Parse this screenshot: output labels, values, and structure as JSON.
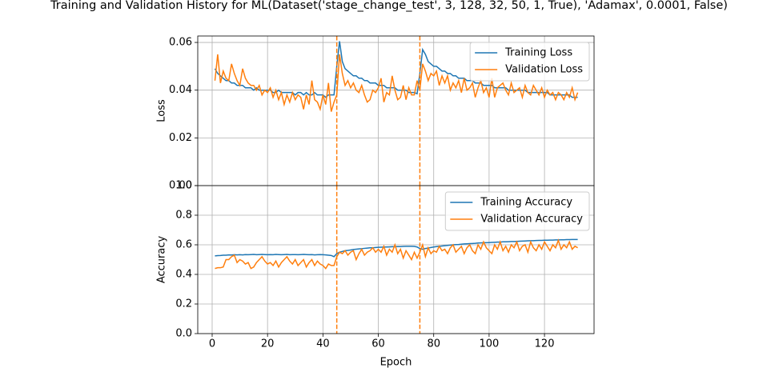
{
  "chart_data": [
    {
      "type": "line",
      "title": "Training and Validation History for ML(Dataset('stage_change_test', 3, 128, 32, 50, 1, True), 'Adamax', 0.0001, False)",
      "ylabel": "Loss",
      "ylim": [
        0,
        0.0627
      ],
      "yticks": [
        {
          "value": 0,
          "label": "0.00"
        },
        0.02,
        0.04,
        0.06
      ],
      "grid": true,
      "legend": "upper right",
      "vlines": [
        45,
        75
      ],
      "vline_color": "#ff7f0e",
      "x": [
        1,
        2,
        3,
        4,
        5,
        6,
        7,
        8,
        9,
        10,
        11,
        12,
        13,
        14,
        15,
        16,
        17,
        18,
        19,
        20,
        21,
        22,
        23,
        24,
        25,
        26,
        27,
        28,
        29,
        30,
        31,
        32,
        33,
        34,
        35,
        36,
        37,
        38,
        39,
        40,
        41,
        42,
        43,
        44,
        45,
        46,
        47,
        48,
        49,
        50,
        51,
        52,
        53,
        54,
        55,
        56,
        57,
        58,
        59,
        60,
        61,
        62,
        63,
        64,
        65,
        66,
        67,
        68,
        69,
        70,
        71,
        72,
        73,
        74,
        75,
        76,
        77,
        78,
        79,
        80,
        81,
        82,
        83,
        84,
        85,
        86,
        87,
        88,
        89,
        90,
        91,
        92,
        93,
        94,
        95,
        96,
        97,
        98,
        99,
        100,
        101,
        102,
        103,
        104,
        105,
        106,
        107,
        108,
        109,
        110,
        111,
        112,
        113,
        114,
        115,
        116,
        117,
        118,
        119,
        120,
        121,
        122,
        123,
        124,
        125,
        126,
        127,
        128,
        129,
        130,
        131,
        132
      ],
      "series": [
        {
          "name": "Training Loss",
          "color": "#1f77b4",
          "values": [
            0.049,
            0.047,
            0.046,
            0.045,
            0.044,
            0.044,
            0.043,
            0.043,
            0.042,
            0.042,
            0.042,
            0.041,
            0.041,
            0.041,
            0.04,
            0.041,
            0.04,
            0.04,
            0.04,
            0.04,
            0.04,
            0.039,
            0.039,
            0.04,
            0.039,
            0.039,
            0.039,
            0.039,
            0.039,
            0.038,
            0.039,
            0.039,
            0.038,
            0.039,
            0.038,
            0.038,
            0.039,
            0.038,
            0.038,
            0.038,
            0.037,
            0.038,
            0.038,
            0.038,
            0.05,
            0.0605,
            0.052,
            0.049,
            0.048,
            0.047,
            0.046,
            0.046,
            0.045,
            0.045,
            0.044,
            0.044,
            0.043,
            0.043,
            0.043,
            0.042,
            0.042,
            0.042,
            0.041,
            0.041,
            0.041,
            0.041,
            0.04,
            0.04,
            0.04,
            0.04,
            0.039,
            0.039,
            0.039,
            0.0385,
            0.047,
            0.057,
            0.055,
            0.052,
            0.051,
            0.05,
            0.05,
            0.049,
            0.048,
            0.048,
            0.047,
            0.047,
            0.046,
            0.046,
            0.045,
            0.045,
            0.045,
            0.044,
            0.044,
            0.044,
            0.043,
            0.043,
            0.043,
            0.042,
            0.042,
            0.042,
            0.042,
            0.041,
            0.041,
            0.041,
            0.041,
            0.041,
            0.04,
            0.04,
            0.04,
            0.04,
            0.04,
            0.04,
            0.04,
            0.039,
            0.039,
            0.039,
            0.039,
            0.039,
            0.039,
            0.039,
            0.039,
            0.038,
            0.038,
            0.038,
            0.038,
            0.038,
            0.038,
            0.038,
            0.038,
            0.037,
            0.037,
            0.037
          ]
        },
        {
          "name": "Validation Loss",
          "color": "#ff7f0e",
          "values": [
            0.044,
            0.055,
            0.043,
            0.048,
            0.045,
            0.044,
            0.051,
            0.047,
            0.044,
            0.042,
            0.049,
            0.045,
            0.043,
            0.042,
            0.042,
            0.04,
            0.042,
            0.038,
            0.04,
            0.039,
            0.041,
            0.037,
            0.04,
            0.036,
            0.039,
            0.034,
            0.038,
            0.035,
            0.039,
            0.036,
            0.038,
            0.037,
            0.032,
            0.038,
            0.034,
            0.044,
            0.036,
            0.035,
            0.032,
            0.038,
            0.034,
            0.043,
            0.031,
            0.035,
            0.038,
            0.055,
            0.047,
            0.042,
            0.044,
            0.041,
            0.043,
            0.04,
            0.039,
            0.042,
            0.038,
            0.035,
            0.036,
            0.04,
            0.039,
            0.041,
            0.045,
            0.035,
            0.039,
            0.038,
            0.046,
            0.04,
            0.036,
            0.037,
            0.042,
            0.036,
            0.041,
            0.038,
            0.038,
            0.044,
            0.04,
            0.051,
            0.048,
            0.044,
            0.047,
            0.046,
            0.048,
            0.042,
            0.046,
            0.043,
            0.046,
            0.04,
            0.043,
            0.041,
            0.044,
            0.039,
            0.045,
            0.04,
            0.041,
            0.043,
            0.037,
            0.041,
            0.044,
            0.039,
            0.041,
            0.037,
            0.045,
            0.037,
            0.041,
            0.042,
            0.043,
            0.04,
            0.038,
            0.043,
            0.039,
            0.04,
            0.041,
            0.037,
            0.042,
            0.039,
            0.038,
            0.042,
            0.04,
            0.038,
            0.041,
            0.037,
            0.04,
            0.038,
            0.039,
            0.036,
            0.039,
            0.038,
            0.036,
            0.039,
            0.037,
            0.041,
            0.036,
            0.039
          ]
        }
      ]
    },
    {
      "type": "line",
      "xlabel": "Epoch",
      "ylabel": "Accuracy",
      "xlim": [
        -5.2,
        137.9
      ],
      "xticks": [
        0,
        20,
        40,
        60,
        80,
        100,
        120
      ],
      "ylim": [
        0,
        1.0
      ],
      "yticks": [
        {
          "value": 0,
          "label": "0.0"
        },
        0.2,
        0.4,
        0.6,
        0.8,
        {
          "value": 1.0,
          "label": "1.0"
        }
      ],
      "grid": true,
      "legend": "upper right",
      "vlines": [
        45,
        75
      ],
      "vline_color": "#ff7f0e",
      "x": [
        1,
        2,
        3,
        4,
        5,
        6,
        7,
        8,
        9,
        10,
        11,
        12,
        13,
        14,
        15,
        16,
        17,
        18,
        19,
        20,
        21,
        22,
        23,
        24,
        25,
        26,
        27,
        28,
        29,
        30,
        31,
        32,
        33,
        34,
        35,
        36,
        37,
        38,
        39,
        40,
        41,
        42,
        43,
        44,
        45,
        46,
        47,
        48,
        49,
        50,
        51,
        52,
        53,
        54,
        55,
        56,
        57,
        58,
        59,
        60,
        61,
        62,
        63,
        64,
        65,
        66,
        67,
        68,
        69,
        70,
        71,
        72,
        73,
        74,
        75,
        76,
        77,
        78,
        79,
        80,
        81,
        82,
        83,
        84,
        85,
        86,
        87,
        88,
        89,
        90,
        91,
        92,
        93,
        94,
        95,
        96,
        97,
        98,
        99,
        100,
        101,
        102,
        103,
        104,
        105,
        106,
        107,
        108,
        109,
        110,
        111,
        112,
        113,
        114,
        115,
        116,
        117,
        118,
        119,
        120,
        121,
        122,
        123,
        124,
        125,
        126,
        127,
        128,
        129,
        130,
        131,
        132
      ],
      "series": [
        {
          "name": "Training Accuracy",
          "color": "#1f77b4",
          "values": [
            0.525,
            0.527,
            0.528,
            0.53,
            0.53,
            0.532,
            0.531,
            0.533,
            0.532,
            0.533,
            0.532,
            0.534,
            0.533,
            0.534,
            0.535,
            0.533,
            0.534,
            0.535,
            0.534,
            0.533,
            0.534,
            0.533,
            0.535,
            0.534,
            0.533,
            0.534,
            0.535,
            0.533,
            0.534,
            0.534,
            0.533,
            0.534,
            0.535,
            0.534,
            0.533,
            0.534,
            0.532,
            0.533,
            0.534,
            0.533,
            0.532,
            0.53,
            0.528,
            0.52,
            0.54,
            0.55,
            0.555,
            0.56,
            0.562,
            0.565,
            0.568,
            0.57,
            0.572,
            0.574,
            0.576,
            0.578,
            0.58,
            0.58,
            0.582,
            0.583,
            0.584,
            0.585,
            0.585,
            0.586,
            0.587,
            0.587,
            0.588,
            0.588,
            0.589,
            0.59,
            0.59,
            0.59,
            0.589,
            0.585,
            0.575,
            0.57,
            0.575,
            0.578,
            0.582,
            0.585,
            0.588,
            0.59,
            0.592,
            0.594,
            0.596,
            0.598,
            0.6,
            0.601,
            0.602,
            0.604,
            0.606,
            0.607,
            0.608,
            0.609,
            0.61,
            0.612,
            0.613,
            0.614,
            0.614,
            0.615,
            0.616,
            0.617,
            0.618,
            0.618,
            0.62,
            0.62,
            0.621,
            0.622,
            0.622,
            0.623,
            0.624,
            0.625,
            0.626,
            0.627,
            0.628,
            0.628,
            0.629,
            0.63,
            0.63,
            0.631,
            0.631,
            0.632,
            0.632,
            0.633,
            0.633,
            0.634,
            0.634,
            0.635,
            0.635,
            0.636,
            0.636,
            0.636
          ]
        },
        {
          "name": "Validation Accuracy",
          "color": "#ff7f0e",
          "values": [
            0.44,
            0.445,
            0.445,
            0.45,
            0.5,
            0.5,
            0.52,
            0.53,
            0.48,
            0.5,
            0.49,
            0.47,
            0.48,
            0.44,
            0.45,
            0.48,
            0.5,
            0.52,
            0.49,
            0.47,
            0.48,
            0.46,
            0.49,
            0.45,
            0.48,
            0.5,
            0.52,
            0.49,
            0.47,
            0.5,
            0.46,
            0.48,
            0.5,
            0.45,
            0.48,
            0.5,
            0.46,
            0.49,
            0.47,
            0.46,
            0.44,
            0.47,
            0.46,
            0.46,
            0.52,
            0.55,
            0.54,
            0.56,
            0.53,
            0.55,
            0.56,
            0.5,
            0.54,
            0.57,
            0.53,
            0.55,
            0.56,
            0.58,
            0.55,
            0.57,
            0.55,
            0.59,
            0.53,
            0.57,
            0.55,
            0.6,
            0.54,
            0.57,
            0.51,
            0.56,
            0.53,
            0.5,
            0.55,
            0.51,
            0.55,
            0.6,
            0.52,
            0.58,
            0.54,
            0.56,
            0.55,
            0.59,
            0.56,
            0.57,
            0.54,
            0.58,
            0.6,
            0.55,
            0.57,
            0.59,
            0.54,
            0.58,
            0.6,
            0.56,
            0.54,
            0.6,
            0.57,
            0.62,
            0.58,
            0.56,
            0.54,
            0.6,
            0.57,
            0.62,
            0.56,
            0.59,
            0.55,
            0.6,
            0.58,
            0.62,
            0.56,
            0.59,
            0.6,
            0.55,
            0.62,
            0.58,
            0.56,
            0.6,
            0.57,
            0.62,
            0.59,
            0.56,
            0.6,
            0.58,
            0.63,
            0.57,
            0.6,
            0.58,
            0.62,
            0.57,
            0.59,
            0.58
          ]
        }
      ]
    }
  ]
}
